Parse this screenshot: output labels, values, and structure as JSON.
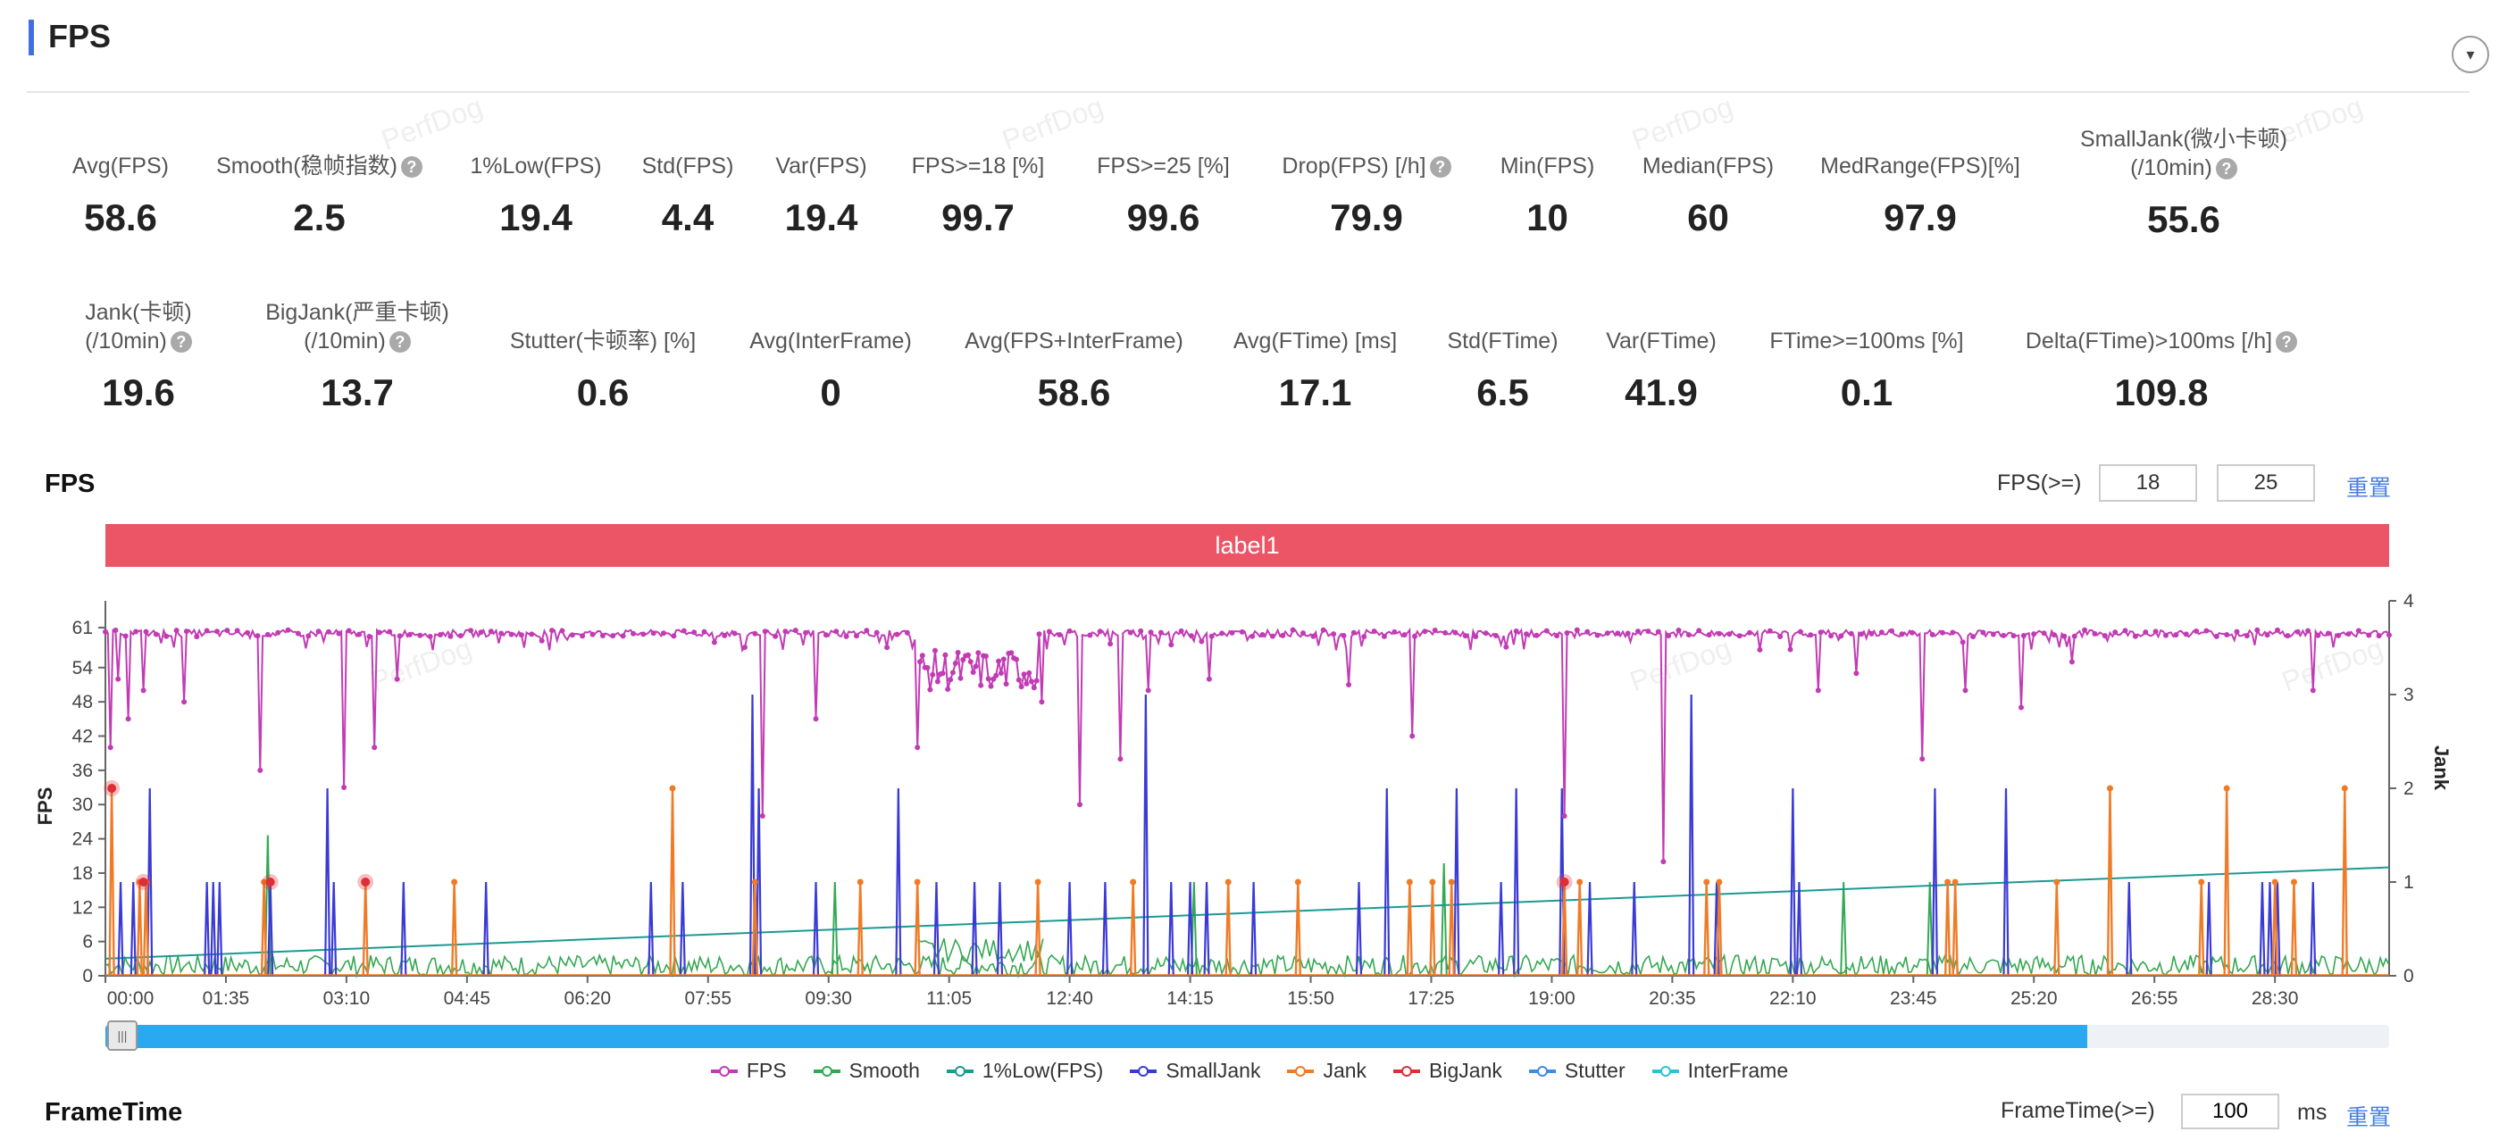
{
  "section": {
    "title": "FPS",
    "collapse_icon": "▾"
  },
  "metrics_row1": [
    {
      "label": "Avg(FPS)",
      "value": "58.6",
      "help": false
    },
    {
      "label": "Smooth(稳帧指数)",
      "value": "2.5",
      "help": true
    },
    {
      "label": "1%Low(FPS)",
      "value": "19.4",
      "help": false
    },
    {
      "label": "Std(FPS)",
      "value": "4.4",
      "help": false
    },
    {
      "label": "Var(FPS)",
      "value": "19.4",
      "help": false
    },
    {
      "label": "FPS>=18 [%]",
      "value": "99.7",
      "help": false
    },
    {
      "label": "FPS>=25 [%]",
      "value": "99.6",
      "help": false
    },
    {
      "label": "Drop(FPS) [/h]",
      "value": "79.9",
      "help": true
    },
    {
      "label": "Min(FPS)",
      "value": "10",
      "help": false
    },
    {
      "label": "Median(FPS)",
      "value": "60",
      "help": false
    },
    {
      "label": "MedRange(FPS)[%]",
      "value": "97.9",
      "help": false
    },
    {
      "label": "SmallJank(微小卡顿)",
      "label2": "(/10min)",
      "value": "55.6",
      "help": true
    }
  ],
  "metrics_row2": [
    {
      "label": "Jank(卡顿)",
      "label2": "(/10min)",
      "value": "19.6",
      "help": true
    },
    {
      "label": "BigJank(严重卡顿)",
      "label2": "(/10min)",
      "value": "13.7",
      "help": true
    },
    {
      "label": "Stutter(卡顿率) [%]",
      "value": "0.6",
      "help": false
    },
    {
      "label": "Avg(InterFrame)",
      "value": "0",
      "help": false
    },
    {
      "label": "Avg(FPS+InterFrame)",
      "value": "58.6",
      "help": false
    },
    {
      "label": "Avg(FTime) [ms]",
      "value": "17.1",
      "help": false
    },
    {
      "label": "Std(FTime)",
      "value": "6.5",
      "help": false
    },
    {
      "label": "Var(FTime)",
      "value": "41.9",
      "help": false
    },
    {
      "label": "FTime>=100ms [%]",
      "value": "0.1",
      "help": false
    },
    {
      "label": "Delta(FTime)>100ms [/h]",
      "value": "109.8",
      "help": true
    }
  ],
  "watermark": "PerfDog",
  "chart_panel": {
    "title": "FPS",
    "threshold_label": "FPS(>=)",
    "threshold_1": "18",
    "threshold_2": "25",
    "reset_label": "重置",
    "label_bar_text": "label1",
    "scrollbar_fill_fraction": 0.868,
    "scroll_handle_glyph": "|||"
  },
  "legend": [
    {
      "name": "FPS",
      "color": "#c13cb4"
    },
    {
      "name": "Smooth",
      "color": "#34a853"
    },
    {
      "name": "1%Low(FPS)",
      "color": "#1a9a92"
    },
    {
      "name": "SmallJank",
      "color": "#3a3ad6"
    },
    {
      "name": "Jank",
      "color": "#f07b27"
    },
    {
      "name": "BigJank",
      "color": "#dd2f35"
    },
    {
      "name": "Stutter",
      "color": "#3f8be0"
    },
    {
      "name": "InterFrame",
      "color": "#2ac3d6"
    }
  ],
  "next_section": {
    "title": "FrameTime",
    "right_label": "FrameTime(>=)",
    "input_value": "100",
    "unit": "ms",
    "reset_label": "重置"
  },
  "chart_data": {
    "type": "line",
    "ylabel": "FPS",
    "y2label": "Jank",
    "y_ticks": [
      0,
      6,
      12,
      18,
      24,
      30,
      36,
      42,
      48,
      54,
      61
    ],
    "y2_ticks": [
      0,
      1,
      2,
      3,
      4
    ],
    "y_range": [
      0,
      65.7
    ],
    "y2_range": [
      0,
      4
    ],
    "x_ticks": [
      "00:00",
      "01:35",
      "03:10",
      "04:45",
      "06:20",
      "07:55",
      "09:30",
      "11:05",
      "12:40",
      "14:15",
      "15:50",
      "17:25",
      "19:00",
      "20:35",
      "22:10",
      "23:45",
      "25:20",
      "26:55",
      "28:30"
    ],
    "x_range_seconds": [
      0,
      1800
    ],
    "series": [
      {
        "name": "FPS",
        "baseline": 60,
        "dips": [
          [
            4,
            40
          ],
          [
            10,
            52
          ],
          [
            18,
            45
          ],
          [
            30,
            50
          ],
          [
            62,
            48
          ],
          [
            122,
            36
          ],
          [
            188,
            33
          ],
          [
            212,
            40
          ],
          [
            230,
            52
          ],
          [
            315,
            47
          ],
          [
            425,
            35
          ],
          [
            505,
            20
          ],
          [
            518,
            28
          ],
          [
            545,
            40
          ],
          [
            560,
            45
          ],
          [
            593,
            33
          ],
          [
            640,
            40
          ],
          [
            700,
            52
          ],
          [
            738,
            48
          ],
          [
            768,
            30
          ],
          [
            800,
            38
          ],
          [
            822,
            50
          ],
          [
            870,
            52
          ],
          [
            945,
            55
          ],
          [
            980,
            51
          ],
          [
            1005,
            38
          ],
          [
            1030,
            42
          ],
          [
            1100,
            58
          ],
          [
            1150,
            28
          ],
          [
            1195,
            34
          ],
          [
            1228,
            20
          ],
          [
            1265,
            40
          ],
          [
            1305,
            49
          ],
          [
            1350,
            50
          ],
          [
            1380,
            53
          ],
          [
            1432,
            38
          ],
          [
            1466,
            50
          ],
          [
            1510,
            47
          ],
          [
            1550,
            55
          ],
          [
            1635,
            45
          ],
          [
            1740,
            50
          ],
          [
            1785,
            43
          ]
        ],
        "unstable_range": [
          640,
          735,
          50,
          57
        ]
      },
      {
        "name": "BigJank",
        "points": [
          [
            5,
            2
          ],
          [
            30,
            1
          ],
          [
            130,
            1
          ],
          [
            205,
            1
          ],
          [
            1150,
            1
          ]
        ]
      },
      {
        "name": "1%Low(FPS)",
        "start": [
          0,
          3
        ],
        "end": [
          1800,
          19
        ]
      },
      {
        "name": "Jank",
        "points": [
          [
            5,
            2
          ],
          [
            27,
            1
          ],
          [
            32,
            1
          ],
          [
            125,
            1
          ],
          [
            205,
            1
          ],
          [
            275,
            1
          ],
          [
            447,
            2
          ],
          [
            512,
            1
          ],
          [
            595,
            1
          ],
          [
            640,
            1
          ],
          [
            735,
            1
          ],
          [
            810,
            1
          ],
          [
            885,
            1
          ],
          [
            940,
            1
          ],
          [
            1028,
            1
          ],
          [
            1046,
            1
          ],
          [
            1061,
            1
          ],
          [
            1150,
            1
          ],
          [
            1162,
            1
          ],
          [
            1262,
            1
          ],
          [
            1272,
            1
          ],
          [
            1452,
            1
          ],
          [
            1458,
            1
          ],
          [
            1538,
            1
          ],
          [
            1580,
            2
          ],
          [
            1652,
            1
          ],
          [
            1672,
            2
          ],
          [
            1710,
            1
          ],
          [
            1725,
            1
          ],
          [
            1765,
            2
          ]
        ]
      },
      {
        "name": "SmallJank",
        "points": [
          [
            12,
            1
          ],
          [
            22,
            1
          ],
          [
            35,
            2
          ],
          [
            80,
            1
          ],
          [
            85,
            1
          ],
          [
            90,
            1
          ],
          [
            130,
            1
          ],
          [
            175,
            2
          ],
          [
            180,
            1
          ],
          [
            235,
            1
          ],
          [
            300,
            1
          ],
          [
            430,
            1
          ],
          [
            455,
            1
          ],
          [
            510,
            3
          ],
          [
            515,
            2
          ],
          [
            560,
            1
          ],
          [
            625,
            2
          ],
          [
            655,
            1
          ],
          [
            685,
            1
          ],
          [
            705,
            1
          ],
          [
            760,
            1
          ],
          [
            788,
            1
          ],
          [
            820,
            3
          ],
          [
            840,
            1
          ],
          [
            855,
            1
          ],
          [
            868,
            1
          ],
          [
            905,
            1
          ],
          [
            988,
            1
          ],
          [
            1010,
            2
          ],
          [
            1065,
            2
          ],
          [
            1100,
            1
          ],
          [
            1112,
            2
          ],
          [
            1148,
            2
          ],
          [
            1170,
            1
          ],
          [
            1205,
            1
          ],
          [
            1250,
            3
          ],
          [
            1270,
            1
          ],
          [
            1330,
            2
          ],
          [
            1335,
            1
          ],
          [
            1442,
            2
          ],
          [
            1498,
            2
          ],
          [
            1595,
            1
          ],
          [
            1658,
            1
          ],
          [
            1700,
            1
          ],
          [
            1706,
            1
          ],
          [
            1712,
            1
          ],
          [
            1740,
            1
          ]
        ]
      },
      {
        "name": "Smooth",
        "points": [
          [
            128,
            1.5
          ],
          [
            575,
            1
          ],
          [
            858,
            1
          ],
          [
            1055,
            1.2
          ],
          [
            1370,
            1
          ],
          [
            1438,
            1
          ]
        ],
        "noise_level": 0.2
      }
    ]
  }
}
